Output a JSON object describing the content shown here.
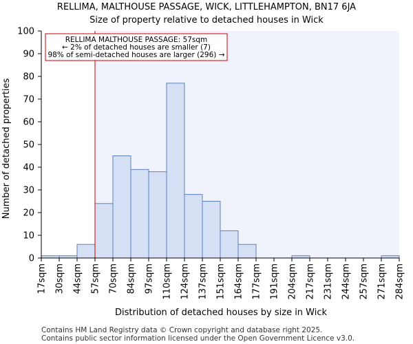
{
  "chart_data": {
    "type": "bar",
    "title": "RELLIMA, MALTHOUSE PASSAGE, WICK, LITTLEHAMPTON, BN17 6JA",
    "subtitle": "Size of property relative to detached houses in Wick",
    "xlabel": "Distribution of detached houses by size in Wick",
    "ylabel": "Number of detached properties",
    "ylim": [
      0,
      100
    ],
    "yticks": [
      0,
      10,
      20,
      30,
      40,
      50,
      60,
      70,
      80,
      90,
      100
    ],
    "bin_edges": [
      "17sqm",
      "30sqm",
      "44sqm",
      "57sqm",
      "70sqm",
      "84sqm",
      "97sqm",
      "110sqm",
      "124sqm",
      "137sqm",
      "151sqm",
      "164sqm",
      "177sqm",
      "191sqm",
      "204sqm",
      "217sqm",
      "231sqm",
      "244sqm",
      "257sqm",
      "271sqm",
      "284sqm"
    ],
    "values": [
      1,
      1,
      6,
      24,
      45,
      39,
      38,
      77,
      28,
      25,
      12,
      6,
      0,
      0,
      1,
      0,
      0,
      0,
      0,
      1
    ],
    "marker": {
      "value_bin_index": 3,
      "label": "RELLIMA MALTHOUSE PASSAGE: 57sqm",
      "line2": "← 2% of detached houses are smaller (7)",
      "line3": "98% of semi-detached houses are larger (296) →"
    },
    "colors": {
      "bar_fill": "#d6e0f4",
      "bar_edge": "#5a7fbf",
      "marker": "#cc0000",
      "highlight_bg": "#f0f3fb",
      "axis": "#000000"
    }
  },
  "footer": {
    "line1": "Contains HM Land Registry data © Crown copyright and database right 2025.",
    "line2": "Contains public sector information licensed under the Open Government Licence v3.0."
  }
}
